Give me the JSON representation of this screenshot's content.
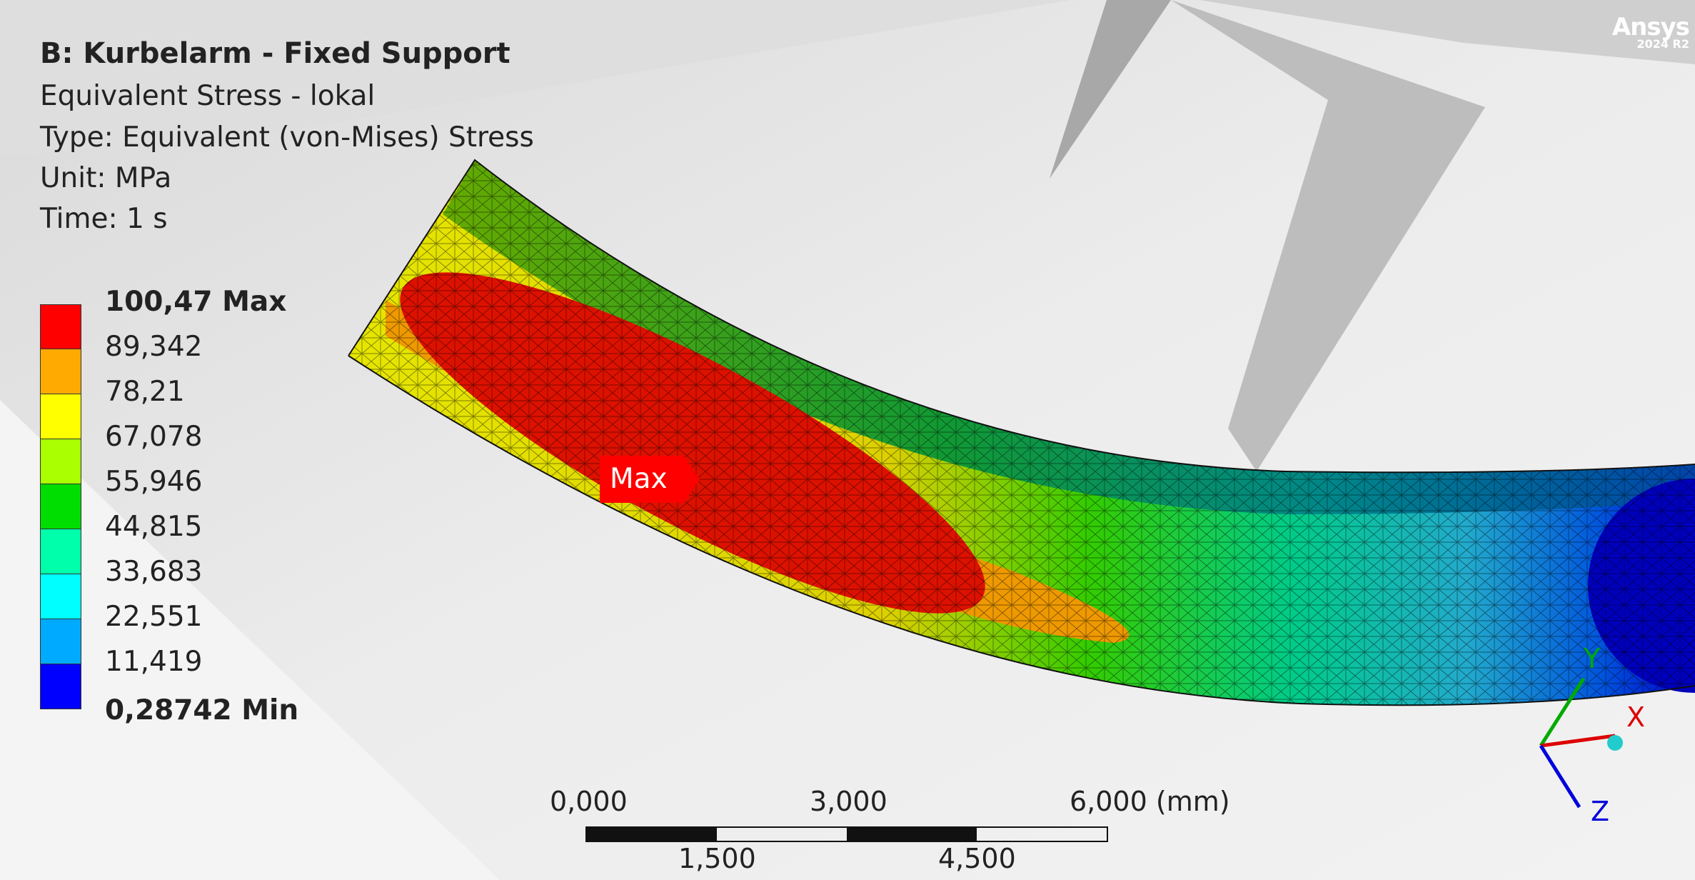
{
  "header": {
    "title": "B: Kurbelarm - Fixed Support",
    "result_name": "Equivalent Stress - lokal",
    "type": "Type: Equivalent (von-Mises) Stress",
    "unit": "Unit: MPa",
    "time": "Time: 1 s"
  },
  "legend": {
    "max_label": "100,47 Max",
    "min_label": "0,28742 Min",
    "values": [
      "89,342",
      "78,21",
      "67,078",
      "55,946",
      "44,815",
      "33,683",
      "22,551",
      "11,419"
    ],
    "colors": [
      "#ff0000",
      "#ffaa00",
      "#ffff00",
      "#aaff00",
      "#00dd00",
      "#00ffaa",
      "#00ffff",
      "#00aaff",
      "#0000ff"
    ]
  },
  "probe": {
    "max_tag": "Max"
  },
  "scale": {
    "top_labels": [
      "0,000",
      "3,000",
      "6,000 (mm)"
    ],
    "bottom_labels": [
      "1,500",
      "4,500"
    ]
  },
  "brand": {
    "name": "Ansys",
    "version": "2024 R2"
  },
  "triad": {
    "x": "X",
    "y": "Y",
    "z": "Z"
  }
}
